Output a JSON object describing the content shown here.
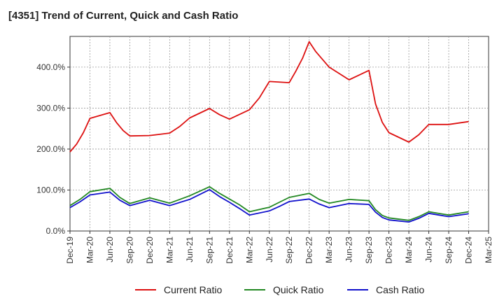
{
  "chart_data": {
    "type": "line",
    "title": "[4351]  Trend of Current, Quick and Cash Ratio",
    "xlabel": "",
    "ylabel": "",
    "ylim": [
      0,
      475
    ],
    "y_ticks": [
      0,
      100,
      200,
      300,
      400
    ],
    "y_tick_labels": [
      "0.0%",
      "100.0%",
      "200.0%",
      "300.0%",
      "400.0%"
    ],
    "x_tick_labels": [
      "Dec-19",
      "Mar-20",
      "Jun-20",
      "Sep-20",
      "Dec-20",
      "Mar-21",
      "Jun-21",
      "Sep-21",
      "Dec-21",
      "Mar-22",
      "Jun-22",
      "Sep-22",
      "Dec-22",
      "Mar-23",
      "Jun-23",
      "Sep-23",
      "Dec-23",
      "Mar-24",
      "Jun-24",
      "Sep-24",
      "Dec-24",
      "Mar-25"
    ],
    "grid": true,
    "legend_position": "bottom",
    "series": [
      {
        "name": "Current Ratio",
        "color": "#dd1111",
        "points": [
          [
            0,
            193
          ],
          [
            0.33,
            212
          ],
          [
            0.67,
            240
          ],
          [
            1,
            275
          ],
          [
            2,
            289
          ],
          [
            2.33,
            265
          ],
          [
            2.67,
            245
          ],
          [
            3,
            232
          ],
          [
            4,
            233
          ],
          [
            5,
            239
          ],
          [
            5.5,
            255
          ],
          [
            6,
            276
          ],
          [
            7,
            299
          ],
          [
            7.5,
            284
          ],
          [
            8,
            273
          ],
          [
            9,
            296
          ],
          [
            9.5,
            325
          ],
          [
            10,
            365
          ],
          [
            11,
            362
          ],
          [
            11.33,
            390
          ],
          [
            11.67,
            422
          ],
          [
            12,
            462
          ],
          [
            12.33,
            438
          ],
          [
            13,
            400
          ],
          [
            14,
            369
          ],
          [
            15,
            392
          ],
          [
            15.33,
            310
          ],
          [
            15.67,
            265
          ],
          [
            16,
            240
          ],
          [
            17,
            217
          ],
          [
            17.5,
            235
          ],
          [
            18,
            260
          ],
          [
            19,
            260
          ],
          [
            20,
            267
          ]
        ]
      },
      {
        "name": "Quick Ratio",
        "color": "#228822",
        "points": [
          [
            0,
            62
          ],
          [
            0.5,
            77
          ],
          [
            1,
            96
          ],
          [
            2,
            104
          ],
          [
            2.5,
            82
          ],
          [
            3,
            67
          ],
          [
            4,
            81
          ],
          [
            5,
            68
          ],
          [
            6,
            86
          ],
          [
            7,
            108
          ],
          [
            7.5,
            92
          ],
          [
            8,
            78
          ],
          [
            8.5,
            64
          ],
          [
            9,
            47
          ],
          [
            10,
            58
          ],
          [
            10.5,
            70
          ],
          [
            11,
            82
          ],
          [
            12,
            92
          ],
          [
            12.5,
            77
          ],
          [
            13,
            68
          ],
          [
            14,
            77
          ],
          [
            15,
            74
          ],
          [
            15.33,
            52
          ],
          [
            15.67,
            38
          ],
          [
            16,
            32
          ],
          [
            17,
            26
          ],
          [
            17.5,
            35
          ],
          [
            18,
            47
          ],
          [
            19,
            39
          ],
          [
            20,
            47
          ]
        ]
      },
      {
        "name": "Cash Ratio",
        "color": "#1111cc",
        "points": [
          [
            0,
            57
          ],
          [
            0.5,
            71
          ],
          [
            1,
            88
          ],
          [
            2,
            95
          ],
          [
            2.5,
            75
          ],
          [
            3,
            62
          ],
          [
            4,
            75
          ],
          [
            5,
            62
          ],
          [
            6,
            77
          ],
          [
            7,
            101
          ],
          [
            7.5,
            84
          ],
          [
            8,
            70
          ],
          [
            8.5,
            55
          ],
          [
            9,
            39
          ],
          [
            10,
            49
          ],
          [
            10.5,
            60
          ],
          [
            11,
            72
          ],
          [
            12,
            78
          ],
          [
            12.5,
            66
          ],
          [
            13,
            57
          ],
          [
            14,
            67
          ],
          [
            15,
            65
          ],
          [
            15.33,
            46
          ],
          [
            15.67,
            33
          ],
          [
            16,
            27
          ],
          [
            17,
            22
          ],
          [
            17.5,
            31
          ],
          [
            18,
            43
          ],
          [
            19,
            35
          ],
          [
            20,
            42
          ]
        ]
      }
    ]
  }
}
